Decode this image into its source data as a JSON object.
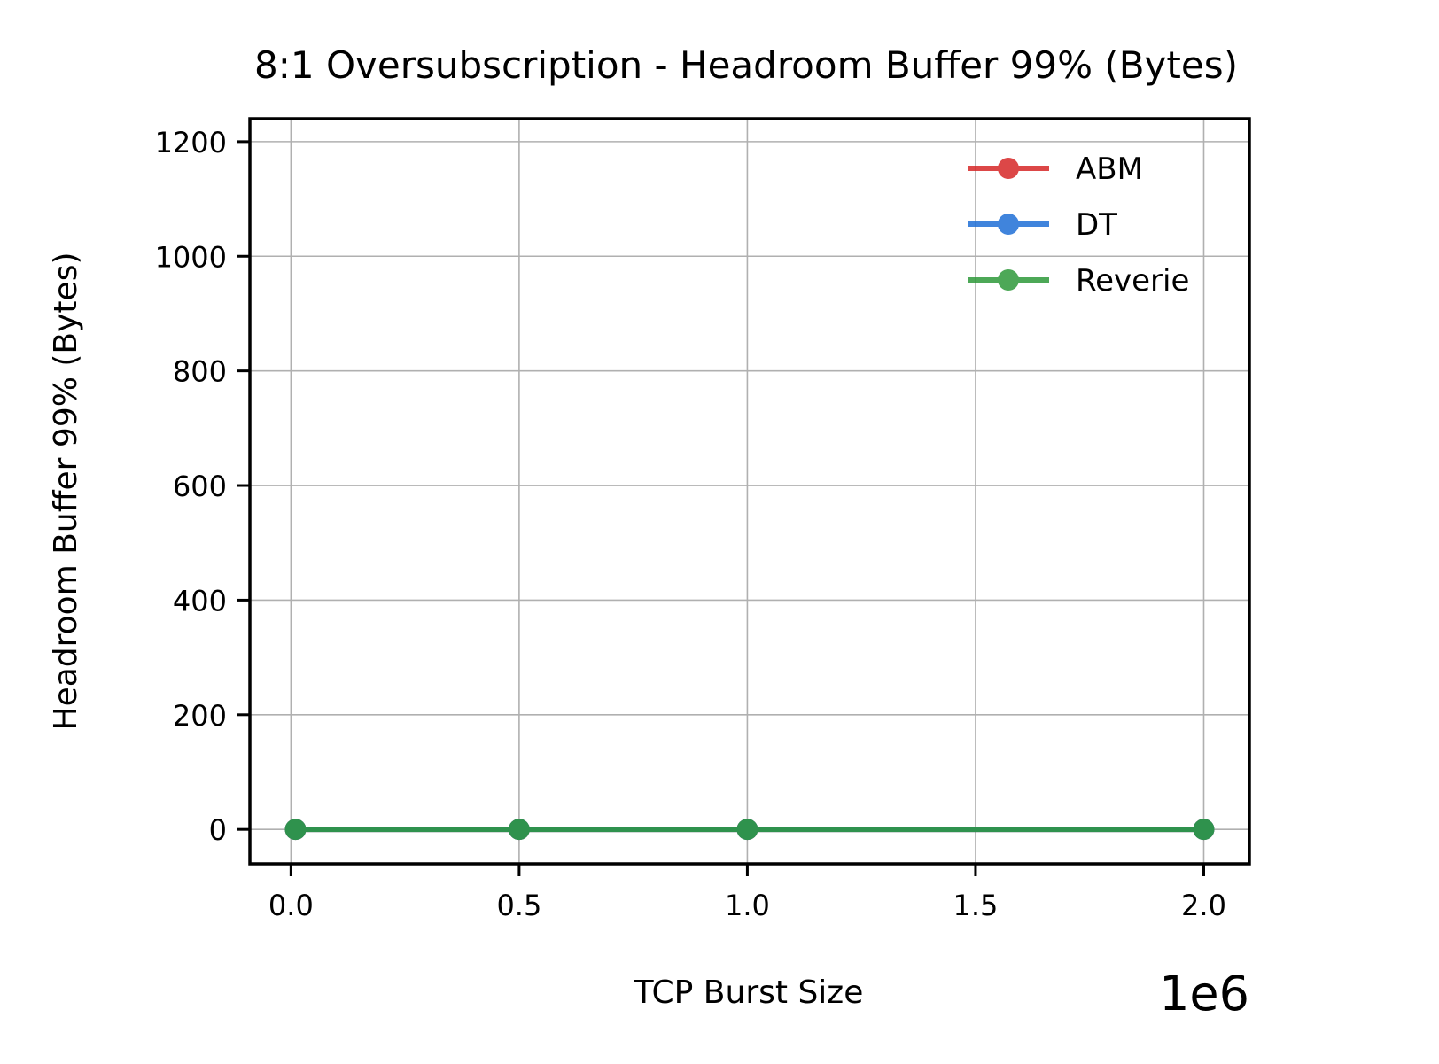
{
  "chart_data": {
    "type": "line",
    "title": "8:1 Oversubscription - Headroom Buffer 99% (Bytes)",
    "xlabel": "TCP Burst Size",
    "ylabel": "Headroom Buffer 99% (Bytes)",
    "x_offset_label": "1e6",
    "xlim": [
      -90000,
      2100000
    ],
    "ylim": [
      -60,
      1240
    ],
    "x_ticks": [
      0,
      500000,
      1000000,
      1500000,
      2000000
    ],
    "x_tick_labels": [
      "0.0",
      "0.5",
      "1.0",
      "1.5",
      "2.0"
    ],
    "y_ticks": [
      0,
      200,
      400,
      600,
      800,
      1000,
      1200
    ],
    "y_tick_labels": [
      "0",
      "200",
      "400",
      "600",
      "800",
      "1000",
      "1200"
    ],
    "grid": true,
    "legend_position": "upper right",
    "series": [
      {
        "name": "ABM",
        "color": "#d62728",
        "x": [
          10000,
          500000,
          1000000,
          2000000
        ],
        "y": [
          0,
          0,
          0,
          0
        ]
      },
      {
        "name": "DT",
        "color": "#1f6fd6",
        "x": [
          10000,
          500000,
          1000000,
          2000000
        ],
        "y": [
          0,
          0,
          0,
          0
        ]
      },
      {
        "name": "Reverie",
        "color": "#2e9a3a",
        "x": [
          10000,
          500000,
          1000000,
          2000000
        ],
        "y": [
          0,
          0,
          0,
          0
        ]
      }
    ]
  }
}
